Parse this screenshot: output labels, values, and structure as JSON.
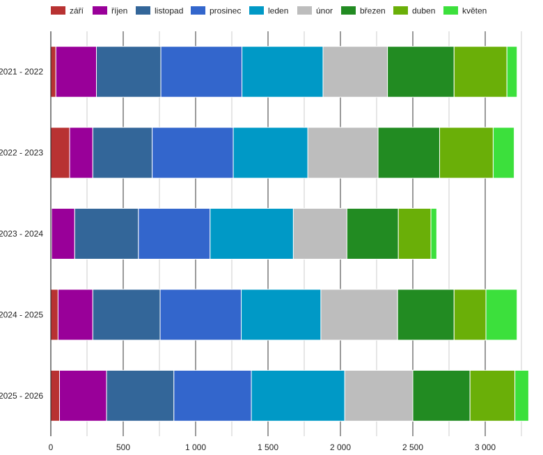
{
  "chart_data": {
    "type": "bar",
    "orientation": "horizontal",
    "stacked": true,
    "categories": [
      "2021 - 2022",
      "2022 - 2023",
      "2023 - 2024",
      "2024 - 2025",
      "2025 - 2026"
    ],
    "series": [
      {
        "name": "září",
        "color": "#b83232",
        "values": [
          35,
          130,
          5,
          50,
          60
        ]
      },
      {
        "name": "říjen",
        "color": "#990099",
        "values": [
          280,
          160,
          160,
          240,
          325
        ]
      },
      {
        "name": "listopad",
        "color": "#336699",
        "values": [
          445,
          410,
          440,
          465,
          465
        ]
      },
      {
        "name": "prosinec",
        "color": "#3366cc",
        "values": [
          560,
          560,
          495,
          560,
          535
        ]
      },
      {
        "name": "leden",
        "color": "#0099c6",
        "values": [
          560,
          515,
          575,
          550,
          645
        ]
      },
      {
        "name": "únor",
        "color": "#bdbdbd",
        "values": [
          445,
          485,
          370,
          530,
          470
        ]
      },
      {
        "name": "březen",
        "color": "#228b22",
        "values": [
          460,
          425,
          355,
          390,
          395
        ]
      },
      {
        "name": "duben",
        "color": "#6aaf08",
        "values": [
          365,
          370,
          225,
          220,
          310
        ]
      },
      {
        "name": "květen",
        "color": "#3ce03c",
        "values": [
          70,
          145,
          40,
          215,
          95
        ]
      }
    ],
    "xlim": [
      0,
      3300
    ],
    "xticks": [
      0,
      500,
      1000,
      1500,
      2000,
      2500,
      3000
    ],
    "xtick_labels": [
      "0",
      "500",
      "1 000",
      "1 500",
      "2 000",
      "2 500",
      "3 000"
    ],
    "grid": true,
    "legend_position": "top"
  }
}
